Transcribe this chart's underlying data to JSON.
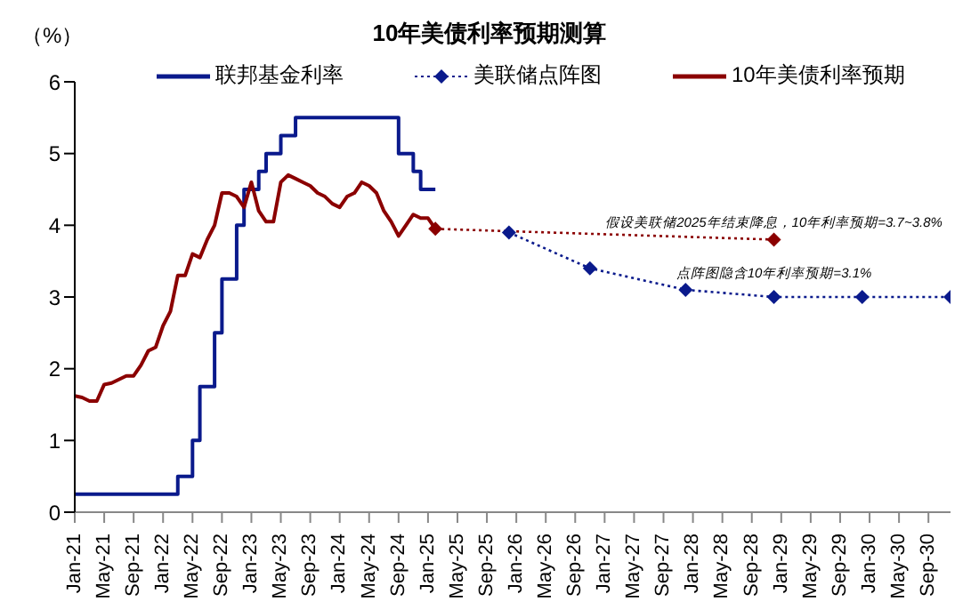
{
  "chart_data": {
    "type": "line",
    "title": "10年美债利率预期测算",
    "ylabel": "（%）",
    "xlim": [
      "2021-01",
      "2030-12"
    ],
    "xticks": [
      {
        "value": "2021-01",
        "label": "Jan-21"
      },
      {
        "value": "2021-05",
        "label": "May-21"
      },
      {
        "value": "2021-09",
        "label": "Sep-21"
      },
      {
        "value": "2022-01",
        "label": "Jan-22"
      },
      {
        "value": "2022-05",
        "label": "May-22"
      },
      {
        "value": "2022-09",
        "label": "Sep-22"
      },
      {
        "value": "2023-01",
        "label": "Jan-23"
      },
      {
        "value": "2023-05",
        "label": "May-23"
      },
      {
        "value": "2023-09",
        "label": "Sep-23"
      },
      {
        "value": "2024-01",
        "label": "Jan-24"
      },
      {
        "value": "2024-05",
        "label": "May-24"
      },
      {
        "value": "2024-09",
        "label": "Sep-24"
      },
      {
        "value": "2025-01",
        "label": "Jan-25"
      },
      {
        "value": "2025-05",
        "label": "May-25"
      },
      {
        "value": "2025-09",
        "label": "Sep-25"
      },
      {
        "value": "2026-01",
        "label": "Jan-26"
      },
      {
        "value": "2026-05",
        "label": "May-26"
      },
      {
        "value": "2026-09",
        "label": "Sep-26"
      },
      {
        "value": "2027-01",
        "label": "Jan-27"
      },
      {
        "value": "2027-05",
        "label": "May-27"
      },
      {
        "value": "2027-09",
        "label": "Sep-27"
      },
      {
        "value": "2028-01",
        "label": "Jan-28"
      },
      {
        "value": "2028-05",
        "label": "May-28"
      },
      {
        "value": "2028-09",
        "label": "Sep-28"
      },
      {
        "value": "2029-01",
        "label": "Jan-29"
      },
      {
        "value": "2029-05",
        "label": "May-29"
      },
      {
        "value": "2029-09",
        "label": "Sep-29"
      },
      {
        "value": "2030-01",
        "label": "Jan-30"
      },
      {
        "value": "2030-05",
        "label": "May-30"
      },
      {
        "value": "2030-09",
        "label": "Sep-30"
      }
    ],
    "ylim": [
      0,
      6
    ],
    "yticks": [
      0,
      1,
      2,
      3,
      4,
      5,
      6
    ],
    "legend": "top",
    "series": [
      {
        "name": "联邦基金利率",
        "type": "step",
        "color": "#0a1a8c",
        "marker": "none",
        "line_style": "solid",
        "x": [
          "2021-01",
          "2022-03",
          "2022-05",
          "2022-06",
          "2022-08",
          "2022-09",
          "2022-11",
          "2022-12",
          "2023-02",
          "2023-03",
          "2023-05",
          "2023-07",
          "2024-09",
          "2024-11",
          "2024-12",
          "2025-02"
        ],
        "values": [
          0.25,
          0.5,
          1.0,
          1.75,
          2.5,
          3.25,
          4.0,
          4.5,
          4.75,
          5.0,
          5.25,
          5.5,
          5.0,
          4.75,
          4.5,
          4.5
        ]
      },
      {
        "name": "美联储点阵图",
        "type": "line",
        "color": "#0a1a8c",
        "marker": "diamond",
        "line_style": "dotted",
        "x": [
          "2025-12",
          "2026-11",
          "2027-12",
          "2028-12",
          "2029-12",
          "2030-12"
        ],
        "values": [
          3.9,
          3.4,
          3.1,
          3.0,
          3.0,
          3.0
        ]
      },
      {
        "name": "10年美债利率预期",
        "type": "line",
        "color": "#8b0000",
        "marker": "none",
        "line_style": "solid",
        "x": [
          "2021-01",
          "2021-02",
          "2021-03",
          "2021-04",
          "2021-05",
          "2021-06",
          "2021-07",
          "2021-08",
          "2021-09",
          "2021-10",
          "2021-11",
          "2021-12",
          "2022-01",
          "2022-02",
          "2022-03",
          "2022-04",
          "2022-05",
          "2022-06",
          "2022-07",
          "2022-08",
          "2022-09",
          "2022-10",
          "2022-11",
          "2022-12",
          "2023-01",
          "2023-02",
          "2023-03",
          "2023-04",
          "2023-05",
          "2023-06",
          "2023-07",
          "2023-08",
          "2023-09",
          "2023-10",
          "2023-11",
          "2023-12",
          "2024-01",
          "2024-02",
          "2024-03",
          "2024-04",
          "2024-05",
          "2024-06",
          "2024-07",
          "2024-08",
          "2024-09",
          "2024-10",
          "2024-11",
          "2024-12",
          "2025-01",
          "2025-02"
        ],
        "values": [
          1.62,
          1.6,
          1.55,
          1.55,
          1.78,
          1.8,
          1.85,
          1.9,
          1.9,
          2.05,
          2.25,
          2.3,
          2.6,
          2.8,
          3.3,
          3.3,
          3.6,
          3.55,
          3.8,
          4.0,
          4.45,
          4.45,
          4.4,
          4.25,
          4.6,
          4.2,
          4.05,
          4.05,
          4.6,
          4.7,
          4.65,
          4.6,
          4.55,
          4.45,
          4.4,
          4.3,
          4.25,
          4.4,
          4.45,
          4.6,
          4.55,
          4.45,
          4.2,
          4.05,
          3.85,
          4.0,
          4.15,
          4.1,
          4.1,
          3.95
        ]
      },
      {
        "type": "line",
        "color": "#8b0000",
        "marker": "diamond",
        "line_style": "dotted",
        "x": [
          "2025-02",
          "2028-12"
        ],
        "values": [
          3.95,
          3.8
        ]
      }
    ],
    "annotations": [
      {
        "text": "假设美联储2025年结束降息，10年利率预期=3.7~3.8%",
        "x": "2028-12",
        "y": 3.8
      },
      {
        "text": "点阵图隐含10年利率预期=3.1%",
        "x": "2028-12",
        "y": 3.1
      }
    ]
  }
}
